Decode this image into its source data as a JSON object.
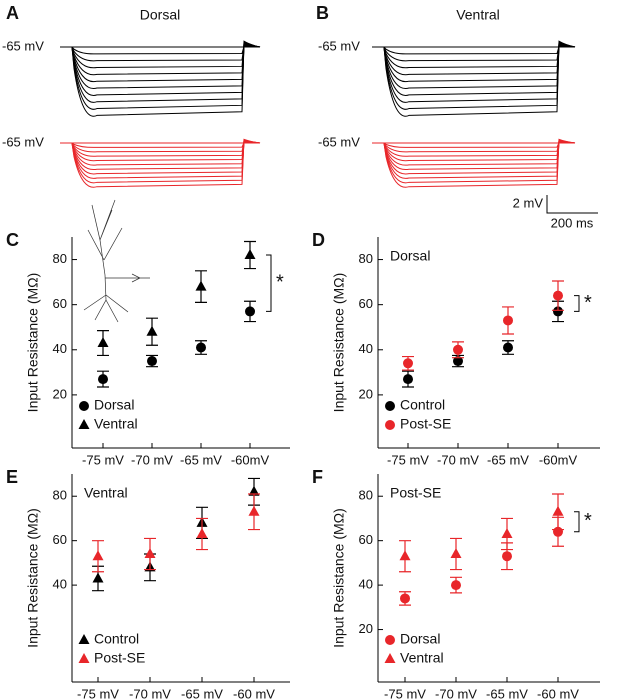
{
  "panels": {
    "A": {
      "label": "A",
      "title": "Dorsal",
      "baseline_labels": [
        "-65 mV",
        "-65 mV"
      ]
    },
    "B": {
      "label": "B",
      "title": "Ventral",
      "baseline_labels": [
        "-65 mV",
        "-65 mV"
      ],
      "scale_bar": {
        "y": "2 mV",
        "x": "200 ms"
      }
    }
  },
  "chart_data": [
    {
      "type": "scatter",
      "panel": "C",
      "y_label": "Input Resistance (MΩ)",
      "categories": [
        "-75 mV",
        "-70 mV",
        "-65 mV",
        "-60mV"
      ],
      "ylim": [
        0,
        90
      ],
      "yticks": [
        20,
        40,
        60,
        80
      ],
      "legend": "lower left",
      "series": [
        {
          "name": "Dorsal",
          "color": "#000000",
          "marker": "circle",
          "values": [
            27,
            35,
            41,
            57
          ],
          "errors": [
            3.5,
            2.5,
            3,
            4.5
          ]
        },
        {
          "name": "Ventral",
          "color": "#000000",
          "marker": "triangle",
          "values": [
            43,
            48,
            68,
            82
          ],
          "errors": [
            5.5,
            6,
            7,
            6
          ]
        }
      ],
      "significance": {
        "text": "*",
        "category": 3
      }
    },
    {
      "type": "scatter",
      "panel": "D",
      "subtitle": "Dorsal",
      "y_label": "Input Resistance (MΩ)",
      "categories": [
        "-75 mV",
        "-70 mV",
        "-65 mV",
        "-60mV"
      ],
      "ylim": [
        0,
        90
      ],
      "yticks": [
        20,
        40,
        60,
        80
      ],
      "legend": "lower left",
      "series": [
        {
          "name": "Control",
          "color": "#000000",
          "marker": "circle",
          "values": [
            27,
            35,
            41,
            57
          ],
          "errors": [
            3.5,
            2.5,
            3,
            4.5
          ]
        },
        {
          "name": "Post-SE",
          "color": "#e8262a",
          "marker": "circle",
          "values": [
            34,
            40,
            53,
            64
          ],
          "errors": [
            3,
            3.5,
            6,
            6.5
          ]
        }
      ],
      "significance": {
        "text": "*",
        "category": 3
      }
    },
    {
      "type": "scatter",
      "panel": "E",
      "subtitle": "Ventral",
      "y_label": "Input Resistance (MΩ)",
      "categories": [
        "-75 mV",
        "-70 mV",
        "-65 mV",
        "-60 mV"
      ],
      "ylim": [
        0,
        90
      ],
      "yticks": [
        40,
        60,
        80
      ],
      "legend": "lower left",
      "series": [
        {
          "name": "Control",
          "color": "#000000",
          "marker": "triangle",
          "values": [
            43,
            48,
            68,
            82
          ],
          "errors": [
            5.5,
            6,
            7,
            6
          ]
        },
        {
          "name": "Post-SE",
          "color": "#e8262a",
          "marker": "triangle",
          "values": [
            53,
            54,
            63,
            73
          ],
          "errors": [
            7,
            7,
            7,
            8
          ]
        }
      ]
    },
    {
      "type": "scatter",
      "panel": "F",
      "subtitle": "Post-SE",
      "y_label": "Input Resistance (MΩ)",
      "categories": [
        "-75 mV",
        "-70 mV",
        "-65 mV",
        "-60 mV"
      ],
      "ylim": [
        0,
        90
      ],
      "yticks": [
        20,
        40,
        60,
        80
      ],
      "legend": "lower left",
      "series": [
        {
          "name": "Dorsal",
          "color": "#e8262a",
          "marker": "circle",
          "values": [
            34,
            40,
            53,
            64
          ],
          "errors": [
            3,
            3.5,
            6,
            6.5
          ]
        },
        {
          "name": "Ventral",
          "color": "#e8262a",
          "marker": "triangle",
          "values": [
            53,
            54,
            63,
            73
          ],
          "errors": [
            7,
            7,
            7,
            8
          ]
        }
      ],
      "significance": {
        "text": "*",
        "category": 3
      }
    }
  ]
}
